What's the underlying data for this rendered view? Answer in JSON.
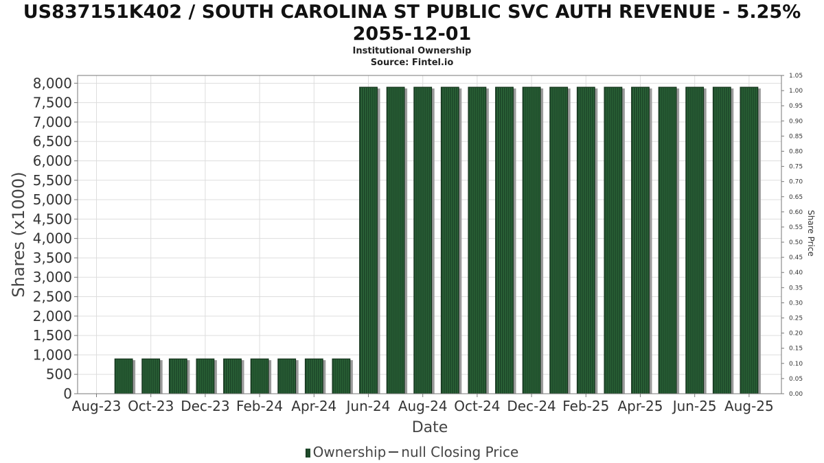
{
  "header": {
    "title": "US837151K402 / SOUTH CAROLINA ST PUBLIC SVC AUTH REVENUE - 5.25% 2055-12-01",
    "subtitle": "Institutional Ownership",
    "source": "Source: Fintel.io"
  },
  "legend": {
    "ownership_label": "Ownership",
    "price_label": "null Closing Price"
  },
  "colors": {
    "bar_fill": "#1e4a2a",
    "bar_stripe": "#2f6b3c",
    "bar_shadow": "#9a9a9a",
    "grid": "#dddddd"
  },
  "chart_data": {
    "type": "bar",
    "xlabel": "Date",
    "ylabel": "Shares (x1000)",
    "y2label": "Share Price",
    "ylim": [
      0,
      8200
    ],
    "y2lim": [
      0,
      1.05
    ],
    "y_ticks": [
      "0",
      "500",
      "1,000",
      "1,500",
      "2,000",
      "2,500",
      "3,000",
      "3,500",
      "4,000",
      "4,500",
      "5,000",
      "5,500",
      "6,000",
      "6,500",
      "7,000",
      "7,500",
      "8,000"
    ],
    "y2_ticks": [
      "0.00",
      "0.05",
      "0.10",
      "0.15",
      "0.20",
      "0.25",
      "0.30",
      "0.35",
      "0.40",
      "0.45",
      "0.50",
      "0.55",
      "0.60",
      "0.65",
      "0.70",
      "0.75",
      "0.80",
      "0.85",
      "0.90",
      "0.95",
      "1.00",
      "1.05"
    ],
    "x_tick_labels": [
      "Aug-23",
      "Oct-23",
      "Dec-23",
      "Feb-24",
      "Apr-24",
      "Jun-24",
      "Aug-24",
      "Oct-24",
      "Dec-24",
      "Feb-25",
      "Apr-25",
      "Jun-25",
      "Aug-25"
    ],
    "grid": true,
    "legend_position": "bottom",
    "series": [
      {
        "name": "Ownership",
        "values": [
          900,
          900,
          900,
          900,
          900,
          900,
          900,
          900,
          900,
          7900,
          7900,
          7900,
          7900,
          7900,
          7900,
          7900,
          7900,
          7900,
          7900,
          7900,
          7900,
          7900,
          7900,
          7900
        ]
      }
    ]
  }
}
